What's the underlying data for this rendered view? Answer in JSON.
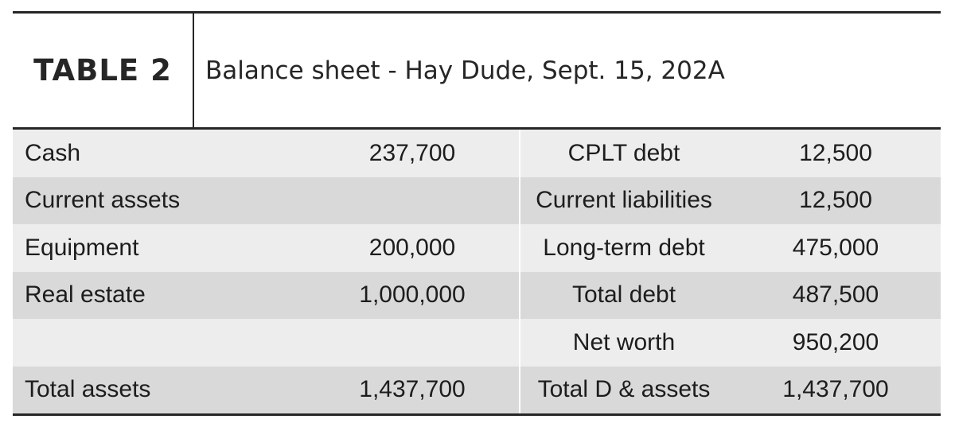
{
  "header": {
    "label": "TABLE 2",
    "title": "Balance sheet - Hay Dude, Sept. 15, 202A"
  },
  "rows": [
    {
      "asset": "Cash",
      "asset_value": "237,700",
      "liability": "CPLT debt",
      "liability_value": "12,500"
    },
    {
      "asset": "Current assets",
      "asset_value": "",
      "liability": "Current liabilities",
      "liability_value": "12,500"
    },
    {
      "asset": "Equipment",
      "asset_value": "200,000",
      "liability": "Long-term debt",
      "liability_value": "475,000"
    },
    {
      "asset": "Real estate",
      "asset_value": "1,000,000",
      "liability": "Total debt",
      "liability_value": "487,500"
    },
    {
      "asset": "",
      "asset_value": "",
      "liability": "Net worth",
      "liability_value": "950,200"
    },
    {
      "asset": "Total assets",
      "asset_value": "1,437,700",
      "liability": "Total D & assets",
      "liability_value": "1,437,700"
    }
  ]
}
